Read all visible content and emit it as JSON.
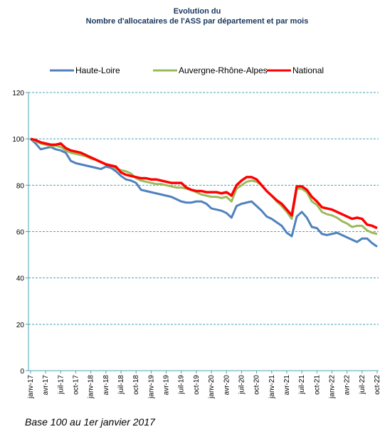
{
  "chart_data": {
    "type": "line",
    "title": "Evolution du",
    "subtitle": "Nombre d'allocataires de l'ASS par département et par mois",
    "note": "Base 100 au 1er janvier 2017",
    "categories": [
      "janv-17",
      null,
      null,
      "avr-17",
      null,
      null,
      "juil-17",
      null,
      null,
      "oct-17",
      null,
      null,
      "janv-18",
      null,
      null,
      "avr-18",
      null,
      null,
      "juil-18",
      null,
      null,
      "oct-18",
      null,
      null,
      "janv-19",
      null,
      null,
      "avr-19",
      null,
      null,
      "juil-19",
      null,
      null,
      "oct-19",
      null,
      null,
      "janv-20",
      null,
      null,
      "avr-20",
      null,
      null,
      "juil-20",
      null,
      null,
      "oct-20",
      null,
      null,
      "janv-21",
      null,
      null,
      "avr-21",
      null,
      null,
      "juil-21",
      null,
      null,
      "oct-21",
      null,
      null,
      "janv-22",
      null,
      null,
      "avr-22",
      null,
      null,
      "juil-22",
      null,
      null,
      "oct-22"
    ],
    "series": [
      {
        "name": "Haute-Loire",
        "color": "#4f81bd",
        "values": [
          100,
          98,
          95.5,
          96,
          96.5,
          95.5,
          95,
          94,
          90.5,
          89.5,
          89,
          88.5,
          88,
          87.5,
          87,
          88,
          87.5,
          86,
          84,
          82.5,
          82,
          81,
          78,
          77.5,
          77,
          76.5,
          76,
          75.5,
          75,
          74,
          73,
          72.5,
          72.5,
          73,
          73,
          72,
          70,
          69.5,
          69,
          68,
          66,
          71,
          72,
          72.5,
          73,
          71,
          69,
          66.5,
          65.5,
          64,
          62.5,
          59.5,
          58,
          66.5,
          68.5,
          66,
          62,
          61.5,
          59,
          58.5,
          59,
          59.5,
          58.5,
          57.5,
          56.5,
          55.5,
          57,
          57,
          55,
          53.5
        ]
      },
      {
        "name": "Auvergne-Rhône-Alpes",
        "color": "#9bbb59",
        "values": [
          100,
          99,
          98,
          97.5,
          97,
          97,
          96.5,
          95,
          94,
          93.5,
          93,
          92.5,
          91.5,
          91,
          90,
          89,
          88.5,
          87,
          86.5,
          86,
          85,
          83,
          82,
          81.5,
          81,
          80.5,
          80.5,
          80,
          79.5,
          79,
          79,
          78.5,
          78,
          77,
          76,
          75.5,
          75,
          75,
          74.5,
          75,
          73,
          78.5,
          80,
          81.5,
          82,
          81.5,
          80,
          77.5,
          75.5,
          73,
          71,
          68.5,
          65.5,
          78.5,
          78.5,
          77,
          73,
          71.5,
          68.5,
          67.5,
          67,
          66,
          64.5,
          63.5,
          62,
          62.5,
          62.5,
          60.5,
          59.5,
          59
        ]
      },
      {
        "name": "National",
        "color": "#ff0000",
        "values": [
          100,
          99.5,
          98.5,
          98,
          97.5,
          97.5,
          98,
          96,
          95,
          94.5,
          94,
          93,
          92,
          91,
          90,
          89,
          88.5,
          88,
          85.5,
          84.5,
          84,
          83.5,
          83,
          83,
          82.5,
          82.5,
          82,
          81.5,
          81,
          81,
          81,
          79,
          78,
          77.5,
          77.5,
          77,
          77,
          77,
          76.5,
          77,
          75.5,
          80,
          82,
          83.5,
          83.5,
          82.5,
          80,
          77.5,
          75.5,
          73.5,
          72,
          69.5,
          67,
          79.5,
          79.5,
          78,
          75,
          73,
          70.5,
          70,
          69.5,
          68.5,
          67.5,
          66.5,
          65.5,
          66,
          65.5,
          63,
          62.5,
          61.5
        ]
      }
    ],
    "ylim": [
      0,
      120
    ],
    "yticks": [
      0,
      20,
      40,
      60,
      80,
      100,
      120
    ],
    "grid": true,
    "legend": "top"
  }
}
